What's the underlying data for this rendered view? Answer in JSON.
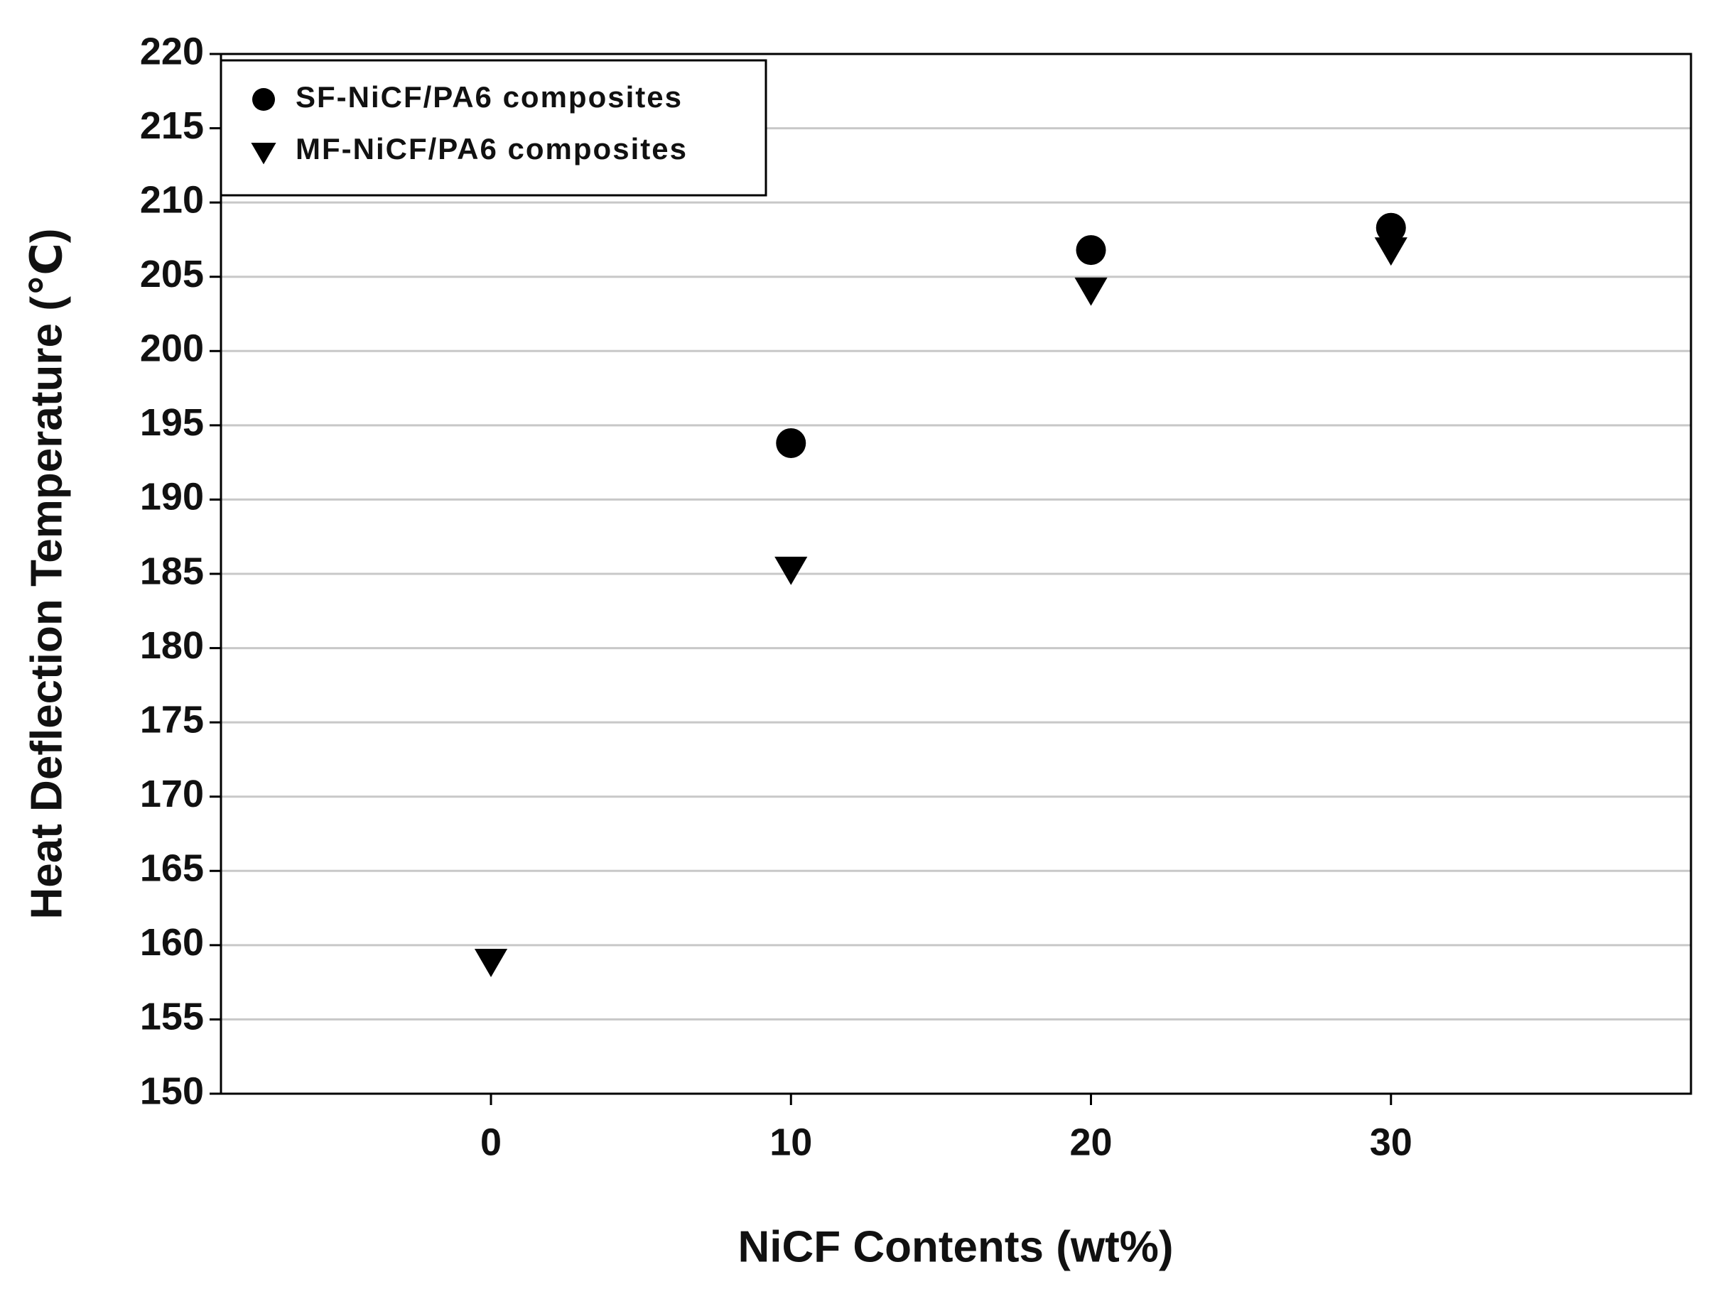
{
  "chart_data": {
    "type": "scatter",
    "xlabel": "NiCF Contents (wt%)",
    "ylabel": "Heat Deflection Temperature (℃)",
    "xlim": [
      -9,
      40
    ],
    "xticks": [
      0,
      10,
      20,
      30
    ],
    "ylim": [
      150,
      220
    ],
    "yticks": [
      150,
      155,
      160,
      165,
      170,
      175,
      180,
      185,
      190,
      195,
      200,
      205,
      210,
      215,
      220
    ],
    "grid": true,
    "legend": "upper left",
    "series": [
      {
        "name": "SF-NiCF/PA6 composites",
        "color": "#000000",
        "marker": "circle",
        "x": [
          10,
          20,
          30
        ],
        "values": [
          193.8,
          206.8,
          208.3
        ]
      },
      {
        "name": "MF-NiCF/PA6 composites",
        "color": "#000000",
        "marker": "triangle-down",
        "x": [
          0,
          10,
          20,
          30
        ],
        "values": [
          159,
          185.4,
          204.2,
          206.9
        ]
      }
    ]
  }
}
